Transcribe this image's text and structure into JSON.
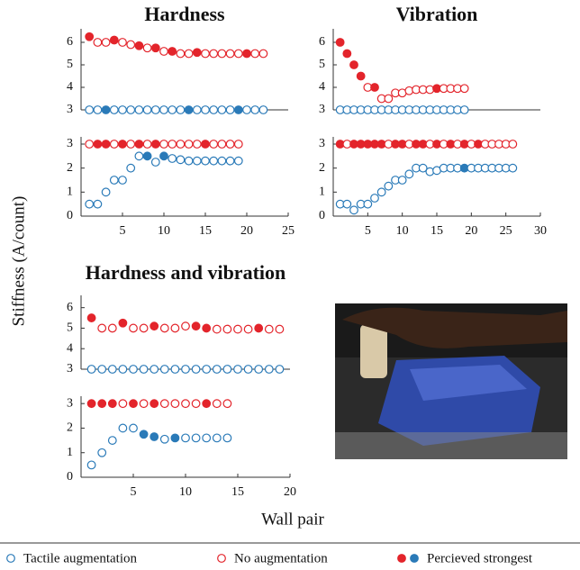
{
  "figure": {
    "y_label": "Stiffness (A/count)",
    "x_label": "Wall pair",
    "legend": [
      {
        "label": "Tactile augmentation",
        "markers": [
          {
            "color": "#2a7ab8",
            "filled": false
          }
        ]
      },
      {
        "label": "No augmentation",
        "markers": [
          {
            "color": "#e3242b",
            "filled": false
          }
        ]
      },
      {
        "label": "Percieved strongest",
        "markers": [
          {
            "color": "#e3242b",
            "filled": true
          },
          {
            "color": "#2a7ab8",
            "filled": true
          }
        ]
      }
    ]
  },
  "chart_data": [
    {
      "type": "scatter",
      "title": "Hardness",
      "xlim": [
        0,
        25
      ],
      "xticks": [
        5,
        10,
        15,
        20,
        25
      ],
      "subplots": [
        {
          "ylim": [
            3,
            6.6
          ],
          "yticks": [
            3,
            4,
            5,
            6
          ],
          "series": [
            {
              "color": "#e3242b",
              "x": [
                1,
                2,
                3,
                4,
                5,
                6,
                7,
                8,
                9,
                10,
                11,
                12,
                13,
                14,
                15,
                16,
                17,
                18,
                19,
                20,
                21,
                22
              ],
              "values": [
                6.25,
                6,
                6,
                6.1,
                6,
                5.9,
                5.85,
                5.75,
                5.75,
                5.6,
                5.6,
                5.5,
                5.5,
                5.55,
                5.5,
                5.5,
                5.5,
                5.5,
                5.5,
                5.5,
                5.5,
                5.5
              ],
              "strongest": [
                true,
                false,
                false,
                true,
                false,
                false,
                true,
                false,
                true,
                false,
                true,
                false,
                false,
                true,
                false,
                false,
                false,
                false,
                false,
                true,
                false,
                false
              ]
            },
            {
              "color": "#2a7ab8",
              "x": [
                1,
                2,
                3,
                4,
                5,
                6,
                7,
                8,
                9,
                10,
                11,
                12,
                13,
                14,
                15,
                16,
                17,
                18,
                19,
                20,
                21,
                22
              ],
              "values": [
                3,
                3,
                3,
                3,
                3,
                3,
                3,
                3,
                3,
                3,
                3,
                3,
                3,
                3,
                3,
                3,
                3,
                3,
                3,
                3,
                3,
                3
              ],
              "strongest": [
                false,
                false,
                true,
                false,
                false,
                false,
                false,
                false,
                false,
                false,
                false,
                false,
                true,
                false,
                false,
                false,
                false,
                false,
                true,
                false,
                false,
                false
              ]
            }
          ]
        },
        {
          "ylim": [
            0,
            3.3
          ],
          "yticks": [
            0,
            1,
            2,
            3
          ],
          "series": [
            {
              "color": "#e3242b",
              "x": [
                1,
                2,
                3,
                4,
                5,
                6,
                7,
                8,
                9,
                10,
                11,
                12,
                13,
                14,
                15,
                16,
                17,
                18,
                19
              ],
              "values": [
                3,
                3,
                3,
                3,
                3,
                3,
                3,
                3,
                3,
                3,
                3,
                3,
                3,
                3,
                3,
                3,
                3,
                3,
                3
              ],
              "strongest": [
                false,
                true,
                true,
                false,
                true,
                false,
                true,
                false,
                true,
                false,
                false,
                false,
                false,
                false,
                true,
                false,
                false,
                false,
                false
              ]
            },
            {
              "color": "#2a7ab8",
              "x": [
                1,
                2,
                3,
                4,
                5,
                6,
                7,
                8,
                9,
                10,
                11,
                12,
                13,
                14,
                15,
                16,
                17,
                18,
                19
              ],
              "values": [
                0.5,
                0.5,
                1,
                1.5,
                1.5,
                2,
                2.5,
                2.5,
                2.25,
                2.5,
                2.4,
                2.35,
                2.3,
                2.3,
                2.3,
                2.3,
                2.3,
                2.3,
                2.3
              ],
              "strongest": [
                false,
                false,
                false,
                false,
                false,
                false,
                false,
                true,
                false,
                true,
                false,
                false,
                false,
                false,
                false,
                false,
                false,
                false,
                false
              ]
            }
          ]
        }
      ]
    },
    {
      "type": "scatter",
      "title": "Vibration",
      "xlim": [
        0,
        30
      ],
      "xticks": [
        5,
        10,
        15,
        20,
        25,
        30
      ],
      "subplots": [
        {
          "ylim": [
            3,
            6.6
          ],
          "yticks": [
            3,
            4,
            5,
            6
          ],
          "series": [
            {
              "color": "#e3242b",
              "x": [
                1,
                2,
                3,
                4,
                5,
                6,
                7,
                8,
                9,
                10,
                11,
                12,
                13,
                14,
                15,
                16,
                17,
                18,
                19
              ],
              "values": [
                6,
                5.5,
                5,
                4.5,
                4,
                4,
                3.5,
                3.5,
                3.75,
                3.75,
                3.85,
                3.9,
                3.9,
                3.9,
                3.95,
                3.95,
                3.95,
                3.95,
                3.95
              ],
              "strongest": [
                true,
                true,
                true,
                true,
                false,
                true,
                false,
                false,
                false,
                false,
                false,
                false,
                false,
                false,
                true,
                false,
                false,
                false,
                false
              ]
            },
            {
              "color": "#2a7ab8",
              "x": [
                1,
                2,
                3,
                4,
                5,
                6,
                7,
                8,
                9,
                10,
                11,
                12,
                13,
                14,
                15,
                16,
                17,
                18,
                19
              ],
              "values": [
                3,
                3,
                3,
                3,
                3,
                3,
                3,
                3,
                3,
                3,
                3,
                3,
                3,
                3,
                3,
                3,
                3,
                3,
                3
              ],
              "strongest": [
                false,
                false,
                false,
                false,
                false,
                false,
                false,
                false,
                false,
                false,
                false,
                false,
                false,
                false,
                false,
                false,
                false,
                false,
                false
              ]
            }
          ]
        },
        {
          "ylim": [
            0,
            3.3
          ],
          "yticks": [
            0,
            1,
            2,
            3
          ],
          "series": [
            {
              "color": "#e3242b",
              "x": [
                1,
                2,
                3,
                4,
                5,
                6,
                7,
                8,
                9,
                10,
                11,
                12,
                13,
                14,
                15,
                16,
                17,
                18,
                19,
                20,
                21,
                22,
                23,
                24,
                25,
                26
              ],
              "values": [
                3,
                3,
                3,
                3,
                3,
                3,
                3,
                3,
                3,
                3,
                3,
                3,
                3,
                3,
                3,
                3,
                3,
                3,
                3,
                3,
                3,
                3,
                3,
                3,
                3,
                3
              ],
              "strongest": [
                true,
                false,
                true,
                true,
                true,
                true,
                true,
                false,
                true,
                true,
                false,
                true,
                true,
                false,
                true,
                false,
                true,
                false,
                true,
                false,
                true,
                false,
                false,
                false,
                false,
                false
              ]
            },
            {
              "color": "#2a7ab8",
              "x": [
                1,
                2,
                3,
                4,
                5,
                6,
                7,
                8,
                9,
                10,
                11,
                12,
                13,
                14,
                15,
                16,
                17,
                18,
                19,
                20,
                21,
                22,
                23,
                24,
                25,
                26
              ],
              "values": [
                0.5,
                0.5,
                0.25,
                0.5,
                0.5,
                0.75,
                1,
                1.25,
                1.5,
                1.5,
                1.75,
                2,
                2,
                1.85,
                1.9,
                2,
                2,
                2,
                2,
                2,
                2,
                2,
                2,
                2,
                2,
                2
              ],
              "strongest": [
                false,
                false,
                false,
                false,
                false,
                false,
                false,
                false,
                false,
                false,
                false,
                false,
                false,
                false,
                false,
                false,
                false,
                false,
                true,
                false,
                false,
                false,
                false,
                false,
                false,
                false
              ]
            }
          ]
        }
      ]
    },
    {
      "type": "scatter",
      "title": "Hardness and vibration",
      "xlim": [
        0,
        20
      ],
      "xticks": [
        5,
        10,
        15,
        20
      ],
      "subplots": [
        {
          "ylim": [
            3,
            6.6
          ],
          "yticks": [
            3,
            4,
            5,
            6
          ],
          "series": [
            {
              "color": "#e3242b",
              "x": [
                1,
                2,
                3,
                4,
                5,
                6,
                7,
                8,
                9,
                10,
                11,
                12,
                13,
                14,
                15,
                16,
                17,
                18,
                19
              ],
              "values": [
                5.5,
                5,
                5,
                5.25,
                5,
                5,
                5.1,
                5,
                5,
                5.1,
                5.1,
                5,
                4.95,
                4.95,
                4.95,
                4.95,
                5,
                4.95,
                4.95
              ],
              "strongest": [
                true,
                false,
                false,
                true,
                false,
                false,
                true,
                false,
                false,
                false,
                true,
                true,
                false,
                false,
                false,
                false,
                true,
                false,
                false
              ]
            },
            {
              "color": "#2a7ab8",
              "x": [
                1,
                2,
                3,
                4,
                5,
                6,
                7,
                8,
                9,
                10,
                11,
                12,
                13,
                14,
                15,
                16,
                17,
                18,
                19
              ],
              "values": [
                3,
                3,
                3,
                3,
                3,
                3,
                3,
                3,
                3,
                3,
                3,
                3,
                3,
                3,
                3,
                3,
                3,
                3,
                3
              ],
              "strongest": [
                false,
                false,
                false,
                false,
                false,
                false,
                false,
                false,
                false,
                false,
                false,
                false,
                false,
                false,
                false,
                false,
                false,
                false,
                false
              ]
            }
          ]
        },
        {
          "ylim": [
            0,
            3.3
          ],
          "yticks": [
            0,
            1,
            2,
            3
          ],
          "series": [
            {
              "color": "#e3242b",
              "x": [
                1,
                2,
                3,
                4,
                5,
                6,
                7,
                8,
                9,
                10,
                11,
                12,
                13,
                14
              ],
              "values": [
                3,
                3,
                3,
                3,
                3,
                3,
                3,
                3,
                3,
                3,
                3,
                3,
                3,
                3
              ],
              "strongest": [
                true,
                true,
                true,
                false,
                true,
                false,
                true,
                false,
                false,
                false,
                false,
                true,
                false,
                false
              ]
            },
            {
              "color": "#2a7ab8",
              "x": [
                1,
                2,
                3,
                4,
                5,
                6,
                7,
                8,
                9,
                10,
                11,
                12,
                13,
                14
              ],
              "values": [
                0.5,
                1,
                1.5,
                2,
                2,
                1.75,
                1.65,
                1.55,
                1.6,
                1.6,
                1.6,
                1.6,
                1.6,
                1.6
              ],
              "strongest": [
                false,
                false,
                false,
                false,
                false,
                true,
                true,
                false,
                true,
                false,
                false,
                false,
                false,
                false
              ]
            }
          ]
        }
      ]
    }
  ]
}
